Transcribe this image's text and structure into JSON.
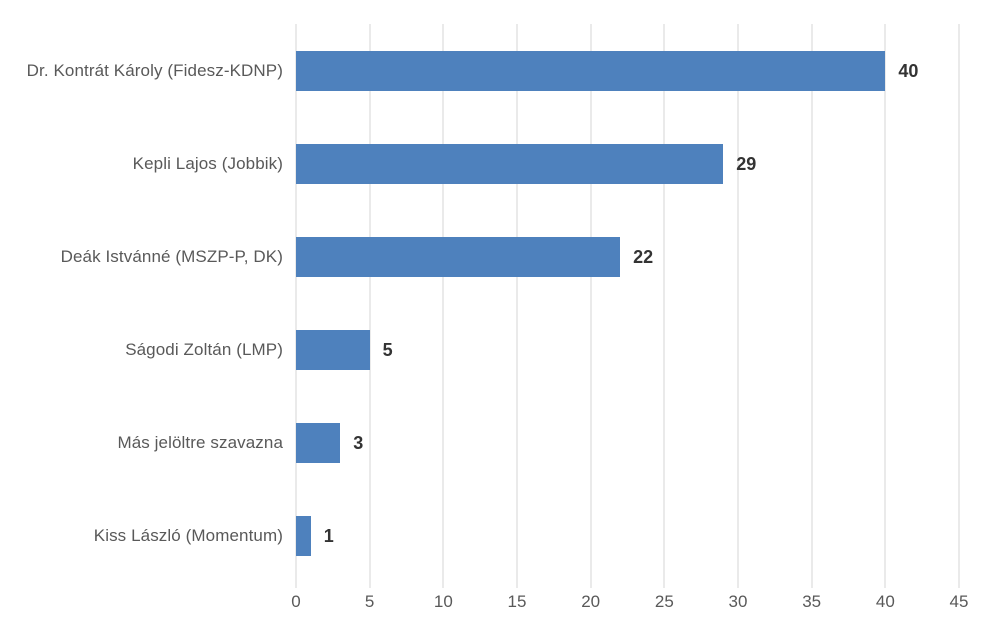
{
  "chart_data": {
    "type": "bar",
    "orientation": "horizontal",
    "title": "",
    "xlabel": "",
    "ylabel": "",
    "categories": [
      "Dr. Kontrát Károly (Fidesz-KDNP)",
      "Kepli Lajos (Jobbik)",
      "Deák Istvánné (MSZP-P, DK)",
      "Ságodi Zoltán (LMP)",
      "Más jelöltre szavazna",
      "Kiss László (Momentum)"
    ],
    "values": [
      40,
      29,
      22,
      5,
      3,
      1
    ],
    "data_labels": [
      "40",
      "29",
      "22",
      "5",
      "3",
      "1"
    ],
    "xlim": [
      0,
      45
    ],
    "x_ticks": [
      0,
      5,
      10,
      15,
      20,
      25,
      30,
      35,
      40,
      45
    ],
    "grid": "vertical-gridlines-on",
    "legend": "none",
    "colors": {
      "bar": "#4E81BD",
      "gridline": "#D6D6D6",
      "category_label": "#595959",
      "tick_label": "#595959",
      "value_label": "#333333",
      "background": "#FFFFFF"
    }
  }
}
